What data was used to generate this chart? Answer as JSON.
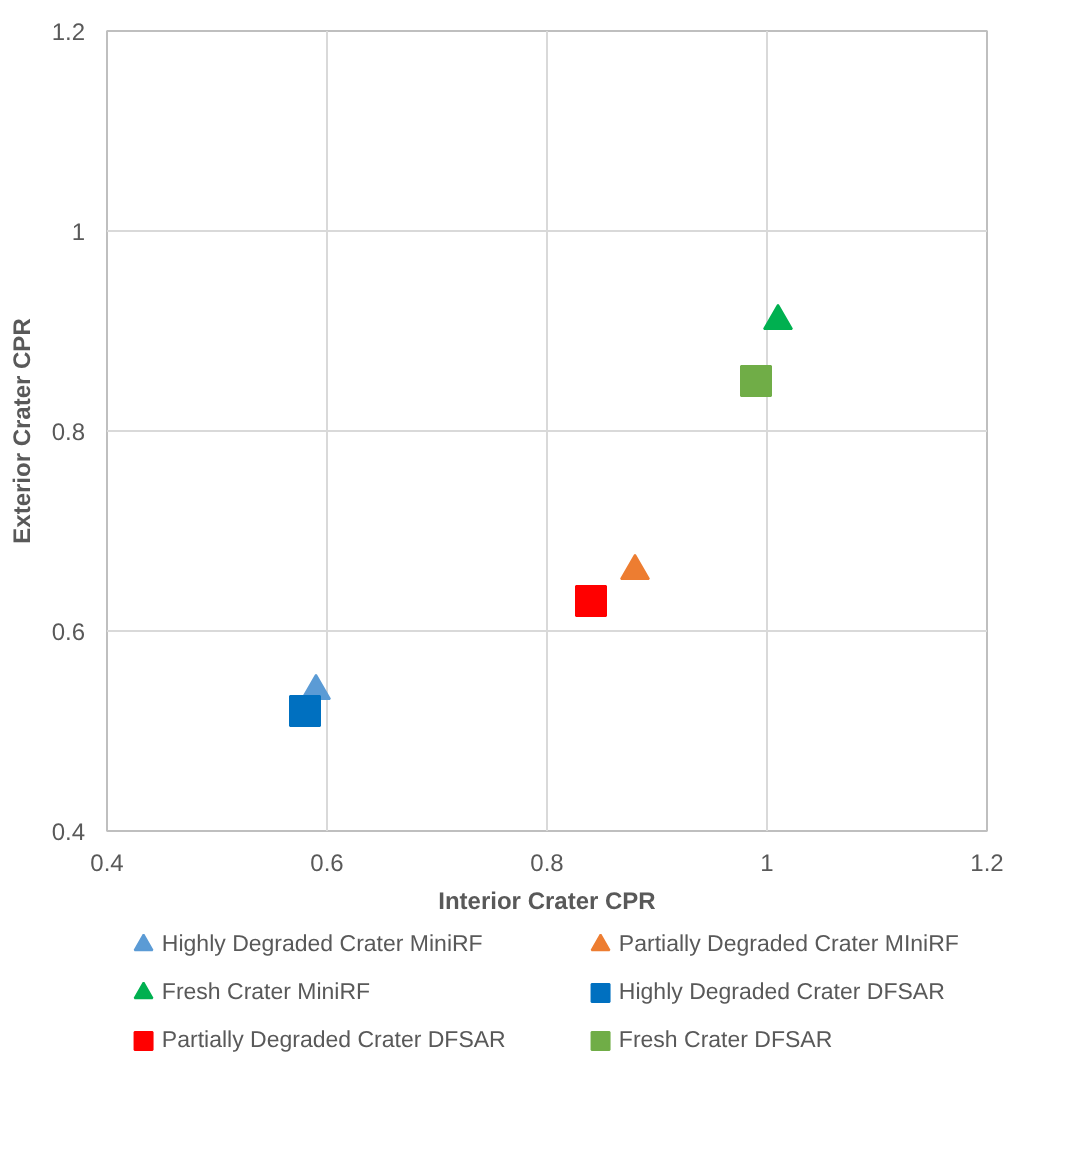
{
  "chart_data": {
    "type": "scatter",
    "xlabel": "Interior Crater CPR",
    "ylabel": "Exterior Crater CPR",
    "xlim": [
      0.4,
      1.2
    ],
    "ylim": [
      0.4,
      1.2
    ],
    "xticks": [
      0.4,
      0.6,
      0.8,
      1,
      1.2
    ],
    "yticks": [
      0.4,
      0.6,
      0.8,
      1,
      1.2
    ],
    "grid": true,
    "legend": "bottom",
    "series": [
      {
        "name": "Highly Degraded Crater MiniRF",
        "color": "#5b9bd5",
        "marker": "triangle",
        "x": [
          0.59
        ],
        "values": [
          0.54
        ]
      },
      {
        "name": "Partially Degraded Crater MIniRF",
        "color": "#ed7d31",
        "marker": "triangle",
        "x": [
          0.88
        ],
        "values": [
          0.66
        ]
      },
      {
        "name": "Fresh Crater MiniRF",
        "color": "#00b050",
        "marker": "triangle",
        "x": [
          1.01
        ],
        "values": [
          0.91
        ]
      },
      {
        "name": "Highly Degraded Crater DFSAR",
        "color": "#0070c0",
        "marker": "square",
        "x": [
          0.58
        ],
        "values": [
          0.52
        ]
      },
      {
        "name": "Partially Degraded Crater DFSAR",
        "color": "#ff0000",
        "marker": "square",
        "x": [
          0.84
        ],
        "values": [
          0.63
        ]
      },
      {
        "name": "Fresh Crater DFSAR",
        "color": "#70ad47",
        "marker": "square",
        "x": [
          0.99
        ],
        "values": [
          0.85
        ]
      }
    ]
  }
}
